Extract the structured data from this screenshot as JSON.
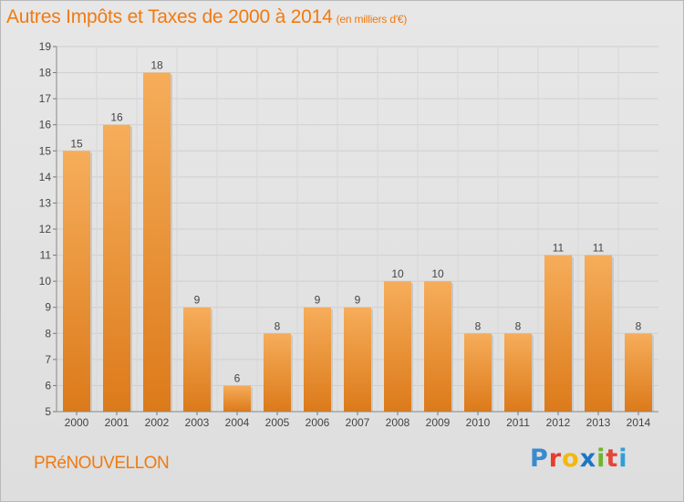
{
  "header": {
    "title": "Autres Impôts et Taxes de 2000 à 2014",
    "subtitle": "(en milliers d'€)"
  },
  "footer": {
    "town": "PRéNOUVELLON",
    "logo": "Proxiti"
  },
  "colors": {
    "accent": "#f07a10",
    "bar_light": "#f6ad5a",
    "bar_dark": "#e07d1c"
  },
  "chart_data": {
    "type": "bar",
    "title": "Autres Impôts et Taxes de 2000 à 2014",
    "subtitle": "(en milliers d'€)",
    "categories": [
      "2000",
      "2001",
      "2002",
      "2003",
      "2004",
      "2005",
      "2006",
      "2007",
      "2008",
      "2009",
      "2010",
      "2011",
      "2012",
      "2013",
      "2014"
    ],
    "values": [
      15,
      16,
      18,
      9,
      6,
      8,
      9,
      9,
      10,
      10,
      8,
      8,
      11,
      11,
      8
    ],
    "ylim": [
      5,
      19
    ],
    "yticks": [
      5,
      6,
      7,
      8,
      9,
      10,
      11,
      12,
      13,
      14,
      15,
      16,
      17,
      18,
      19
    ],
    "grid": true,
    "data_labels": true
  }
}
